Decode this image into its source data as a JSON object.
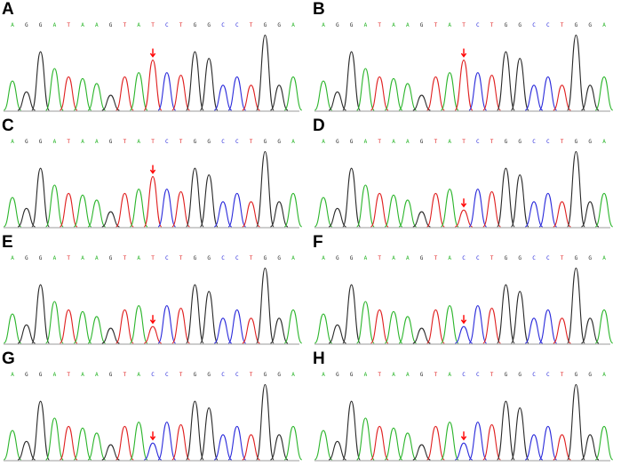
{
  "colors": {
    "A": "#2bb52b",
    "C": "#2a2adb",
    "G": "#2a2a2a",
    "T": "#e02020",
    "arrow": "#ff0000",
    "baseline": "#7a7a7a"
  },
  "panels": [
    {
      "label": "A",
      "bases": "AGGATAAGTATCTGGCCTGGA",
      "arrow_index": 10
    },
    {
      "label": "B",
      "bases": "AGGATAAGTATCTGGCCTGGA",
      "arrow_index": 10
    },
    {
      "label": "C",
      "bases": "AGGATAAGTATCTGGCCTGGA",
      "arrow_index": 10
    },
    {
      "label": "D",
      "bases": "AGGATAAGTATCTGGCCTGGA",
      "arrow_index": 10
    },
    {
      "label": "E",
      "bases": "AGGATAAGTATCTGGCCTGGA",
      "arrow_index": 10
    },
    {
      "label": "F",
      "bases": "AGGATAAGTACCTGGCCTGGA",
      "arrow_index": 10
    },
    {
      "label": "G",
      "bases": "AGGATAAGTACCTGGCCTGGA",
      "arrow_index": 10
    },
    {
      "label": "H",
      "bases": "AGGATAAGTACCTGGCCTGGA",
      "arrow_index": 10
    }
  ],
  "peak_heights": [
    0.35,
    0.22,
    0.7,
    0.5,
    0.4,
    0.38,
    0.32,
    0.18,
    0.4,
    0.45,
    0.6,
    0.45,
    0.42,
    0.7,
    0.62,
    0.3,
    0.4,
    0.3,
    0.9,
    0.3,
    0.4
  ],
  "mut_height": 0.2
}
